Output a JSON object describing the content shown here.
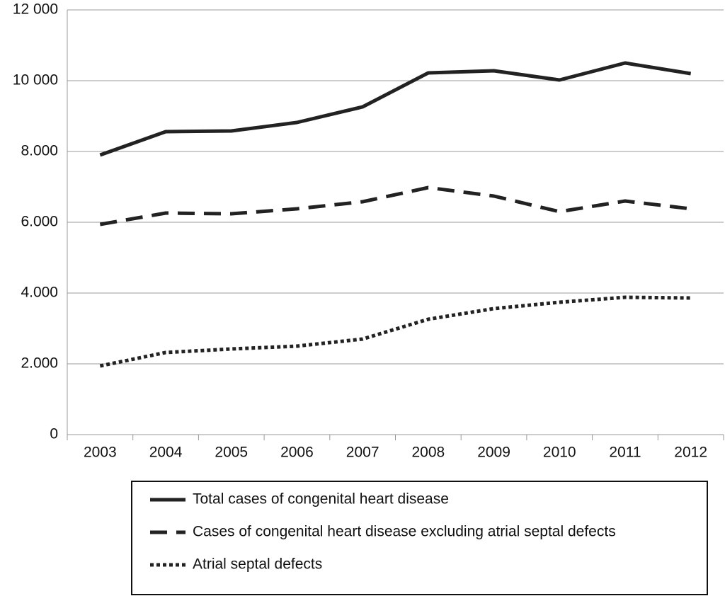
{
  "chart_data": {
    "type": "line",
    "categories": [
      "2003",
      "2004",
      "2005",
      "2006",
      "2007",
      "2008",
      "2009",
      "2010",
      "2011",
      "2012"
    ],
    "series": [
      {
        "name": "Total cases of congenital heart disease",
        "color": "#222222",
        "style": "solid",
        "values": [
          7900,
          8560,
          8580,
          8820,
          9260,
          10220,
          10280,
          10020,
          10500,
          10200
        ]
      },
      {
        "name": "Cases of congenital heart disease excluding atrial septal defects",
        "color": "#222222",
        "style": "dashed",
        "values": [
          5940,
          6260,
          6240,
          6380,
          6580,
          6980,
          6740,
          6300,
          6600,
          6380
        ]
      },
      {
        "name": "Atrial septal defects",
        "color": "#222222",
        "style": "dotted",
        "values": [
          1940,
          2320,
          2420,
          2500,
          2700,
          3260,
          3560,
          3740,
          3880,
          3860
        ]
      }
    ],
    "ylim": [
      0,
      12000
    ],
    "yticks": [
      0,
      {
        "value": 2000,
        "label": "2.000"
      },
      {
        "value": 4000,
        "label": "4.000"
      },
      {
        "value": 6000,
        "label": "6.000"
      },
      {
        "value": 8000,
        "label": "8.000"
      },
      {
        "value": 10000,
        "label": "10 000"
      },
      {
        "value": 12000,
        "label": "12 000"
      }
    ],
    "grid": true
  }
}
